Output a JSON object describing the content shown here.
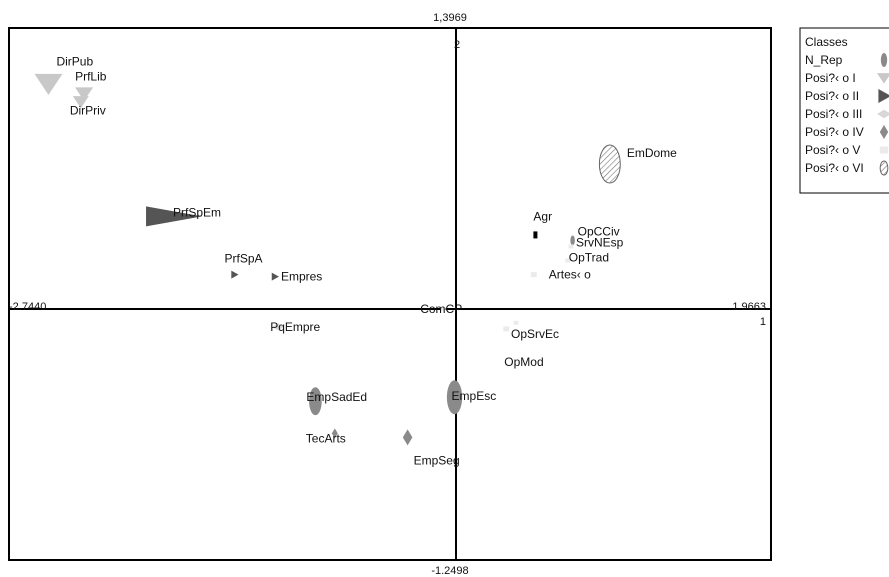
{
  "chart_data": {
    "type": "scatter",
    "title": "",
    "xlabel": "",
    "ylabel": "",
    "xlim": [
      -2.744,
      1.9663
    ],
    "ylim": [
      -1.2498,
      1.3969
    ],
    "range_labels": {
      "top": "1,3969",
      "bottom": "-1.2498",
      "left": "-2.7440",
      "right": "1.9663"
    },
    "axis_ticks": {
      "y": "2",
      "x": "1"
    },
    "grid": false,
    "legend": {
      "position": "right",
      "title": "Classes",
      "entries": [
        {
          "label": "N_Rep",
          "class": "N_Rep",
          "color": "#8a8a8a",
          "shape": "half-oval"
        },
        {
          "label": "Posi?‹ o I",
          "class": "I",
          "color": "#c8c8c8",
          "shape": "triangle-down"
        },
        {
          "label": "Posi?‹ o II",
          "class": "II",
          "color": "#555555",
          "shape": "triangle-right"
        },
        {
          "label": "Posi?‹ o III",
          "class": "III",
          "color": "#d8d8d8",
          "shape": "diamond-wide"
        },
        {
          "label": "Posi?‹ o IV",
          "class": "IV",
          "color": "#8a8a8a",
          "shape": "diamond"
        },
        {
          "label": "Posi?‹ o V",
          "class": "V",
          "color": "#ebebeb",
          "shape": "square"
        },
        {
          "label": "Posi?‹ o VI",
          "class": "VI",
          "color": "#ffffff",
          "shape": "hatched"
        }
      ]
    },
    "points": [
      {
        "label": "DirPub",
        "x": -2.5,
        "y": 1.12,
        "class": "I"
      },
      {
        "label": "PrfLib",
        "x": -2.28,
        "y": 1.07,
        "class": "I"
      },
      {
        "label": "DirPriv",
        "x": -2.3,
        "y": 1.03,
        "class": "I"
      },
      {
        "label": "PrfSpEm",
        "x": -1.73,
        "y": 0.46,
        "class": "II"
      },
      {
        "label": "PrfSpA",
        "x": -1.35,
        "y": 0.17,
        "class": "II"
      },
      {
        "label": "Empres",
        "x": -1.1,
        "y": 0.16,
        "class": "II"
      },
      {
        "label": "EmDome",
        "x": 0.97,
        "y": 0.72,
        "class": "VI"
      },
      {
        "label": "Agr",
        "x": 0.51,
        "y": 0.37,
        "class": "II"
      },
      {
        "label": "OpCCiv",
        "x": 0.74,
        "y": 0.34,
        "class": "N_Rep"
      },
      {
        "label": "SrvNEsp",
        "x": 0.73,
        "y": 0.31,
        "class": "V"
      },
      {
        "label": "OpTrad",
        "x": 0.71,
        "y": 0.24,
        "class": "V"
      },
      {
        "label": "Artes‹ o",
        "x": 0.5,
        "y": 0.17,
        "class": "V"
      },
      {
        "label": "ComCP",
        "x": -0.06,
        "y": 0.0,
        "class": "V"
      },
      {
        "label": "OpSrvEc",
        "x": 0.39,
        "y": -0.07,
        "class": "V"
      },
      {
        "label": "OpMod",
        "x": 0.33,
        "y": -0.1,
        "class": "V"
      },
      {
        "label": "PqEmpre",
        "x": -1.08,
        "y": -0.09,
        "class": "III"
      },
      {
        "label": "EmpSadEd",
        "x": -0.85,
        "y": -0.46,
        "class": "N_Rep"
      },
      {
        "label": "EmpEsc",
        "x": 0.01,
        "y": -0.44,
        "class": "N_Rep"
      },
      {
        "label": "TecArts",
        "x": -0.73,
        "y": -0.62,
        "class": "IV"
      },
      {
        "label": "EmpSeg",
        "x": -0.28,
        "y": -0.64,
        "class": "IV"
      }
    ]
  }
}
